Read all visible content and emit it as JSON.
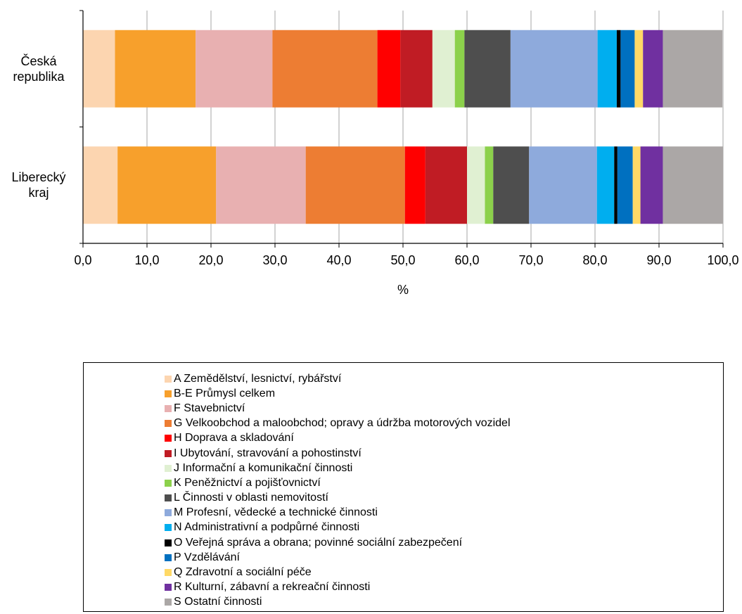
{
  "chart_data": {
    "type": "bar",
    "orientation": "horizontal",
    "stacked": true,
    "categories": [
      "Česká\nrepublika",
      "Liberecký\nkraj"
    ],
    "xlabel": "%",
    "xlim": [
      0,
      100
    ],
    "xticks": [
      "0,0",
      "10,0",
      "20,0",
      "30,0",
      "40,0",
      "50,0",
      "60,0",
      "70,0",
      "80,0",
      "90,0",
      "100,0"
    ],
    "grid": true,
    "legend_position": "bottom",
    "series": [
      {
        "name": "A Zemědělství, lesnictví, rybářství",
        "color": "#fcd5b0",
        "values": [
          5.0,
          5.4
        ]
      },
      {
        "name": "B-E Průmysl celkem",
        "color": "#f7a02c",
        "values": [
          12.6,
          15.4
        ]
      },
      {
        "name": "F Stavebnictví",
        "color": "#e8b0b1",
        "values": [
          12.0,
          14.0
        ]
      },
      {
        "name": "G Velkoobchod a maloobchod; opravy a údržba motorových vozidel",
        "color": "#ed7d33",
        "values": [
          16.4,
          15.5
        ]
      },
      {
        "name": "H Doprava a skladování",
        "color": "#ff0000",
        "values": [
          3.6,
          3.2
        ]
      },
      {
        "name": "I Ubytování, stravování a pohostinství",
        "color": "#c01c24",
        "values": [
          5.0,
          6.5
        ]
      },
      {
        "name": "J Informační a komunikační činnosti",
        "color": "#e0f0d2",
        "values": [
          3.5,
          2.8
        ]
      },
      {
        "name": "K Peněžnictví a pojišťovnictví",
        "color": "#8cd14b",
        "values": [
          1.5,
          1.3
        ]
      },
      {
        "name": "L Činnosti v oblasti nemovitostí",
        "color": "#4e4e4e",
        "values": [
          7.2,
          5.6
        ]
      },
      {
        "name": "M Profesní, vědecké a technické činnosti",
        "color": "#8eaadc",
        "values": [
          13.6,
          10.6
        ]
      },
      {
        "name": "N Administrativní a podpůrné činnosti",
        "color": "#00aeef",
        "values": [
          3.0,
          2.7
        ]
      },
      {
        "name": "O Veřejná správa a obrana; povinné sociální zabezpečení",
        "color": "#000000",
        "values": [
          0.6,
          0.5
        ]
      },
      {
        "name": "P Vzdělávání",
        "color": "#0070c0",
        "values": [
          2.2,
          2.4
        ]
      },
      {
        "name": "Q Zdravotní a sociální péče",
        "color": "#ffd966",
        "values": [
          1.3,
          1.2
        ]
      },
      {
        "name": "R Kulturní, zábavní a rekreační činnosti",
        "color": "#7030a0",
        "values": [
          3.1,
          3.5
        ]
      },
      {
        "name": "S Ostatní činnosti",
        "color": "#aba7a6",
        "values": [
          9.3,
          9.4
        ]
      }
    ]
  }
}
